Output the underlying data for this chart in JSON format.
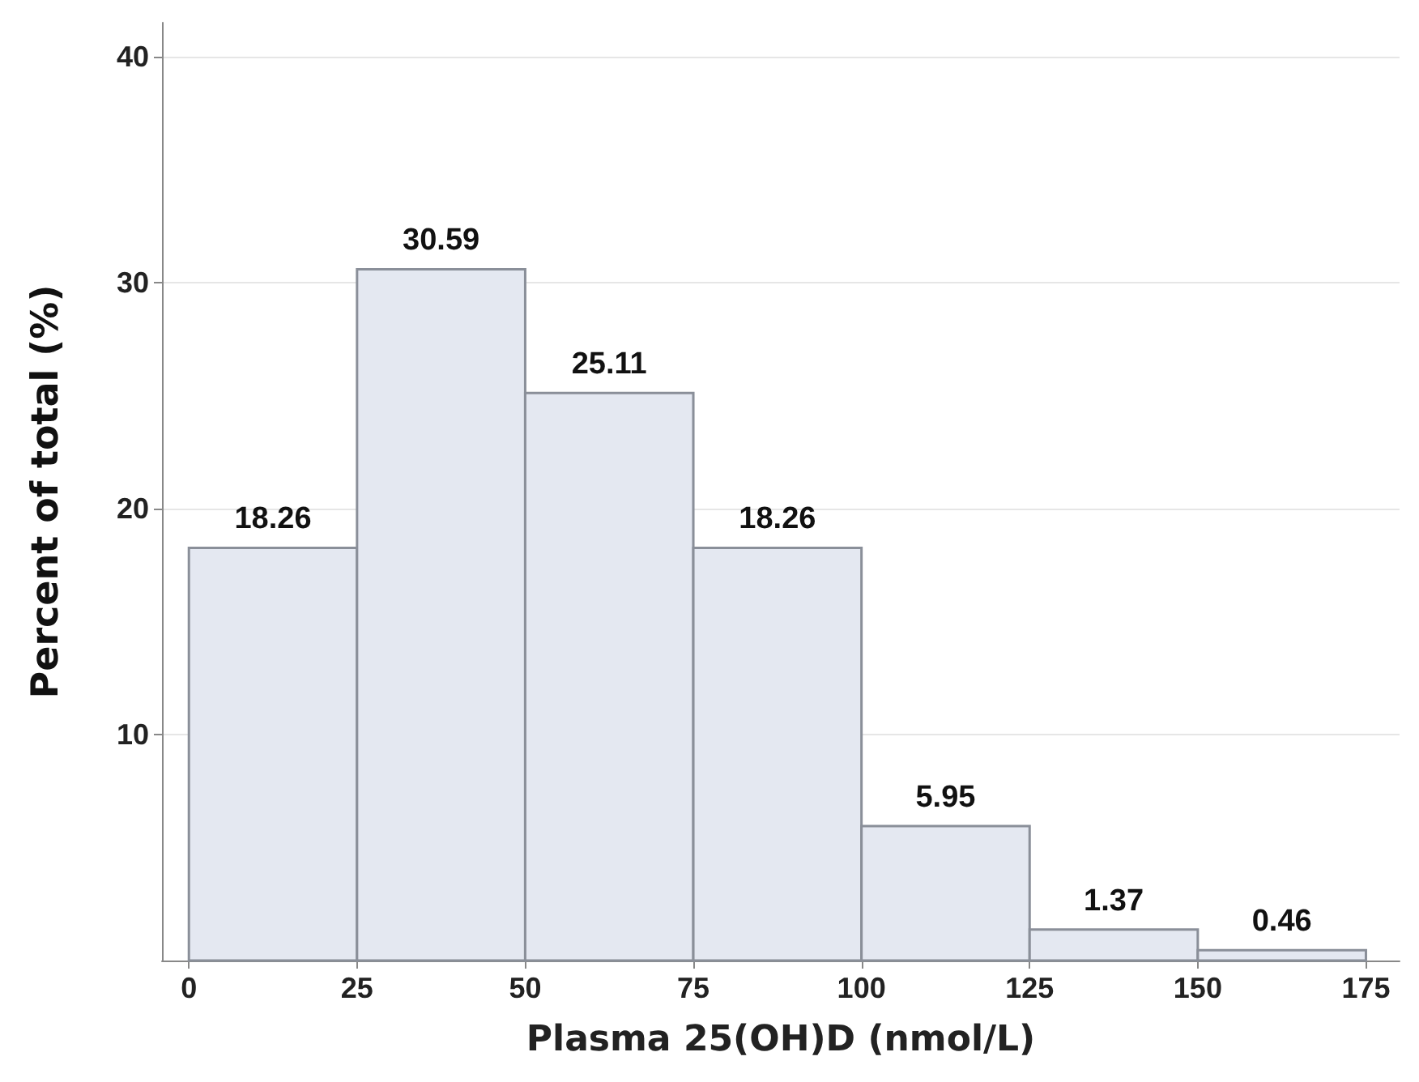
{
  "chart_data": {
    "type": "histogram",
    "xlabel": "Plasma 25(OH)D (nmol/L)",
    "ylabel": "Percent of total (%)",
    "bins": [
      0,
      25,
      50,
      75,
      100,
      125,
      150,
      175
    ],
    "values": [
      18.26,
      30.59,
      25.11,
      18.26,
      5.95,
      1.37,
      0.46
    ],
    "color": "#e4e8f1",
    "data_labels": true,
    "grid": "y",
    "xlim": [
      -4,
      180
    ],
    "xticks": [
      0,
      25,
      50,
      75,
      100,
      125,
      150,
      175
    ],
    "ylim": [
      0,
      41.5
    ],
    "yticks": [
      10,
      20,
      30,
      40
    ]
  }
}
